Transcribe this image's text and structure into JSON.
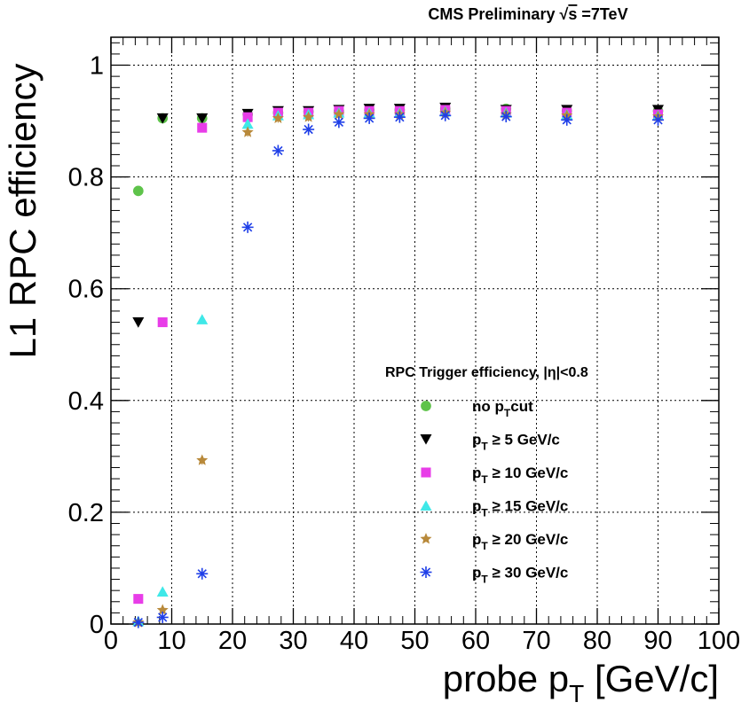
{
  "chart_data": {
    "type": "scatter",
    "header": {
      "prefix": "CMS Preliminary ",
      "sqrt_symbol": "√",
      "s_symbol": "s",
      "energy": " =7TeV"
    },
    "xlabel": {
      "main": "probe p",
      "sub": "T",
      "unit": " [GeV/c]"
    },
    "ylabel": "L1 RPC efficiency",
    "xlim": [
      0,
      100
    ],
    "ylim": [
      0,
      1.05
    ],
    "x_ticks": [
      0,
      10,
      20,
      30,
      40,
      50,
      60,
      70,
      80,
      90,
      100
    ],
    "y_ticks": [
      0,
      0.2,
      0.4,
      0.6,
      0.8,
      1
    ],
    "y_tick_labels": [
      "0",
      "0.2",
      "0.4",
      "0.6",
      "0.8",
      "1"
    ],
    "grid": true,
    "legend_placement": "bottom-right",
    "legend": {
      "title": "RPC Trigger efficiency, |η|<0.8",
      "entries": [
        {
          "pre": "no p",
          "sub": "T",
          "post": "cut"
        },
        {
          "pre": "p",
          "sub": "T",
          "post": " ≥ 5 GeV/c"
        },
        {
          "pre": "p",
          "sub": "T",
          "post": " ≥ 10 GeV/c"
        },
        {
          "pre": "p",
          "sub": "T",
          "post": " ≥ 15 GeV/c"
        },
        {
          "pre": "p",
          "sub": "T",
          "post": " ≥ 20 GeV/c"
        },
        {
          "pre": "p",
          "sub": "T",
          "post": " ≥ 30 GeV/c"
        }
      ]
    },
    "series": [
      {
        "marker": "circle",
        "color": "#5ec34a",
        "x": [
          4.5,
          8.5,
          15,
          22.5,
          27.5,
          32.5,
          37.5,
          42.5,
          47.5,
          55,
          65,
          75,
          90
        ],
        "y": [
          0.775,
          0.905,
          0.905,
          0.912,
          0.915,
          0.917,
          0.918,
          0.92,
          0.92,
          0.922,
          0.922,
          0.918,
          0.918
        ]
      },
      {
        "marker": "triangle-down",
        "color": "#000000",
        "x": [
          4.5,
          8.5,
          15,
          22.5,
          27.5,
          32.5,
          37.5,
          42.5,
          47.5,
          55,
          65,
          75,
          90
        ],
        "y": [
          0.54,
          0.905,
          0.905,
          0.913,
          0.918,
          0.918,
          0.92,
          0.922,
          0.922,
          0.924,
          0.92,
          0.92,
          0.92
        ]
      },
      {
        "marker": "square",
        "color": "#e83de8",
        "x": [
          4.5,
          8.5,
          15,
          22.5,
          27.5,
          32.5,
          37.5,
          42.5,
          47.5,
          55,
          65,
          75,
          90
        ],
        "y": [
          0.045,
          0.54,
          0.888,
          0.907,
          0.915,
          0.915,
          0.918,
          0.918,
          0.918,
          0.92,
          0.918,
          0.915,
          0.912
        ]
      },
      {
        "marker": "triangle-up",
        "color": "#3fe8e8",
        "x": [
          4.5,
          8.5,
          15,
          22.5,
          27.5,
          32.5,
          37.5,
          42.5,
          47.5,
          55,
          65,
          75,
          90
        ],
        "y": [
          0.005,
          0.058,
          0.545,
          0.895,
          0.91,
          0.912,
          0.915,
          0.915,
          0.915,
          0.917,
          0.915,
          0.912,
          0.91
        ]
      },
      {
        "marker": "star",
        "color": "#b8893a",
        "x": [
          4.5,
          8.5,
          15,
          22.5,
          27.5,
          32.5,
          37.5,
          42.5,
          47.5,
          55,
          65,
          75,
          90
        ],
        "y": [
          0.003,
          0.025,
          0.293,
          0.88,
          0.905,
          0.907,
          0.912,
          0.912,
          0.912,
          0.915,
          0.912,
          0.91,
          0.908
        ]
      },
      {
        "marker": "asterisk",
        "color": "#1f3fe8",
        "x": [
          4.5,
          8.5,
          15,
          22.5,
          27.5,
          32.5,
          37.5,
          42.5,
          47.5,
          55,
          65,
          75,
          90
        ],
        "y": [
          0.003,
          0.012,
          0.09,
          0.71,
          0.847,
          0.885,
          0.898,
          0.905,
          0.907,
          0.91,
          0.908,
          0.902,
          0.902
        ]
      }
    ]
  }
}
